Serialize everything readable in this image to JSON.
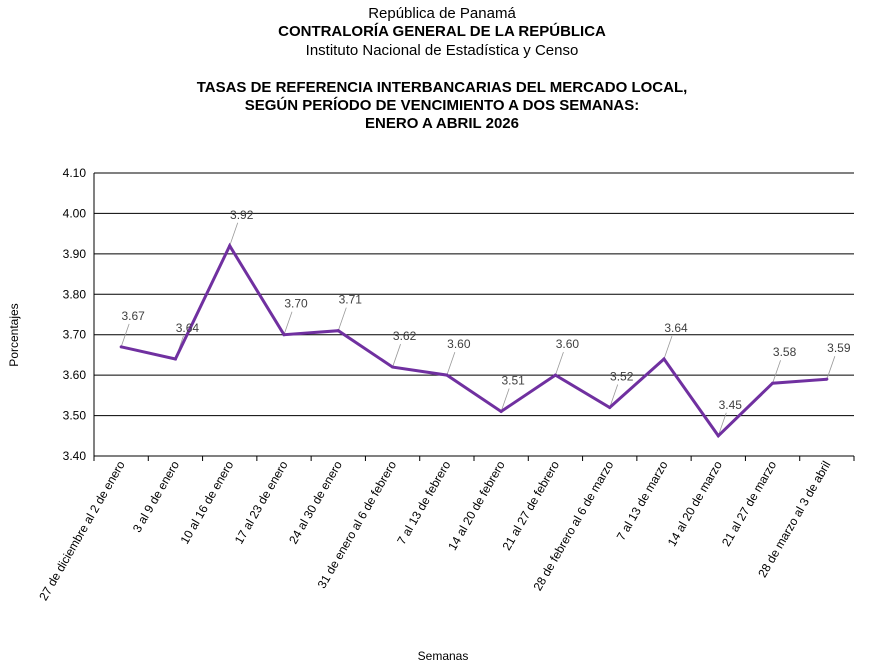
{
  "header": {
    "line1": "República de Panamá",
    "line2": "CONTRALORÍA GENERAL DE LA REPÚBLICA",
    "line3": "Instituto  Nacional de Estadística y Censo"
  },
  "chart_data": {
    "type": "line",
    "title_lines": [
      "TASAS DE REFERENCIA INTERBANCARIAS DEL MERCADO LOCAL,",
      "SEGÚN PERÍODO DE VENCIMIENTO A DOS SEMANAS:",
      "ENERO A ABRIL 2026"
    ],
    "xlabel": "Semanas",
    "ylabel": "Porcentajes",
    "ylim": [
      3.4,
      4.1
    ],
    "yticks": [
      "3.40",
      "3.50",
      "3.60",
      "3.70",
      "3.80",
      "3.90",
      "4.00",
      "4.10"
    ],
    "grid": true,
    "categories": [
      "27 de diciembre al 2 de enero",
      "3 al 9 de enero",
      "10 al 16 de enero",
      "17 al 23 de enero",
      "24 al 30 de enero",
      "31 de enero al 6 de febrero",
      "7 al 13 de febrero",
      "14 al 20 de febrero",
      "21 al 27 de febrero",
      "28 de febrero al 6 de marzo",
      "7 al 13 de marzo",
      "14 al 20 de marzo",
      "21 al 27 de marzo",
      "28 de marzo al 3 de abril"
    ],
    "values": [
      3.67,
      3.64,
      3.92,
      3.7,
      3.71,
      3.62,
      3.6,
      3.51,
      3.6,
      3.52,
      3.64,
      3.45,
      3.58,
      3.59
    ],
    "data_labels": [
      "3.67",
      "3.64",
      "3.92",
      "3.70",
      "3.71",
      "3.62",
      "3.60",
      "3.51",
      "3.60",
      "3.52",
      "3.64",
      "3.45",
      "3.58",
      "3.59"
    ],
    "line_color": "#7030a0"
  }
}
